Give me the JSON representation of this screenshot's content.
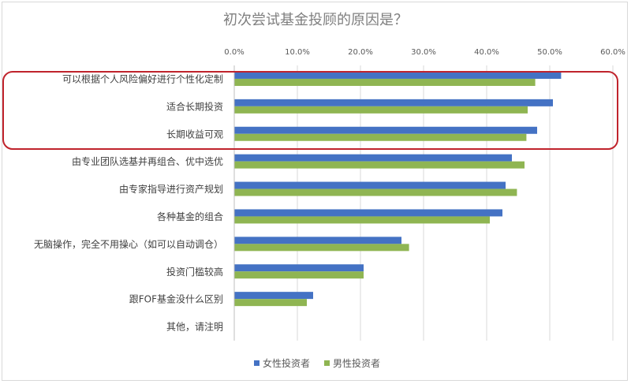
{
  "chart_data": {
    "type": "bar",
    "orientation": "horizontal",
    "title": "初次尝试基金投顾的原因是？",
    "xlim": [
      0,
      0.6
    ],
    "xticks": [
      "0.0%",
      "10.0%",
      "20.0%",
      "30.0%",
      "40.0%",
      "50.0%",
      "60.0%"
    ],
    "grid": true,
    "legend_position": "bottom",
    "categories": [
      "可以根据个人风险偏好进行个性化定制",
      "适合长期投资",
      "长期收益可观",
      "由专业团队选基并再组合、优中选优",
      "由专家指导进行资产规划",
      "各种基金的组合",
      "无脑操作，完全不用操心（如可以自动调仓）",
      "投资门槛较高",
      "跟FOF基金没什么区别",
      "其他，请注明"
    ],
    "series": [
      {
        "name": "女性投资者",
        "color": "#4472c4",
        "values": [
          0.518,
          0.505,
          0.48,
          0.44,
          0.43,
          0.425,
          0.265,
          0.205,
          0.125,
          0.0
        ]
      },
      {
        "name": "男性投资者",
        "color": "#8fb552",
        "values": [
          0.477,
          0.465,
          0.463,
          0.46,
          0.448,
          0.405,
          0.277,
          0.205,
          0.115,
          0.0
        ]
      }
    ],
    "highlight_color": "#c0232c"
  }
}
